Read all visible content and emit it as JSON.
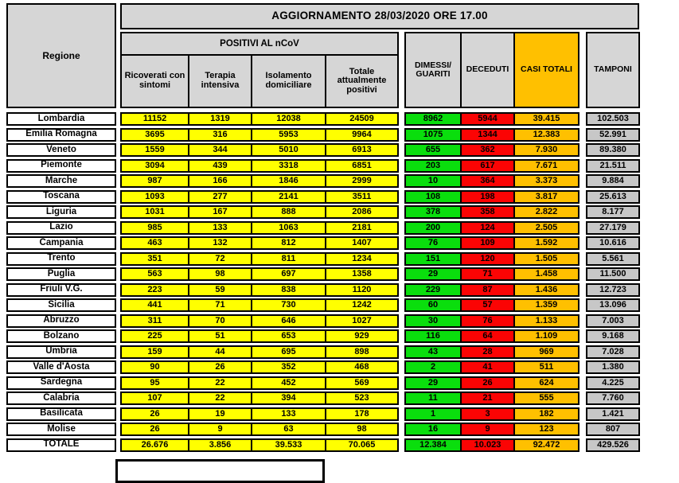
{
  "header": {
    "banner": "AGGIORNAMENTO 28/03/2020 ORE 17.00",
    "regione": "Regione",
    "positivi_group": "POSITIVI AL nCoV",
    "sub": [
      "Ricoverati con sintomi",
      "Terapia intensiva",
      "Isolamento domiciliare",
      "Totale attualmente positivi"
    ],
    "dimessi": "DIMESSI/\nGUARITI",
    "deceduti": "DECEDUTI",
    "casi_totali": "CASI TOTALI",
    "tamponi": "TAMPONI"
  },
  "colors": {
    "yellow": "#FFFF00",
    "green": "#0ADE0D",
    "red": "#FB0404",
    "orange": "#FFC000",
    "header_gray": "#D6D6D6",
    "tamponi_gray": "#C7C7C7",
    "border": "#000000"
  },
  "chart_data": {
    "type": "table",
    "title": "AGGIORNAMENTO 28/03/2020 ORE 17.00",
    "column_group": "POSITIVI AL nCoV",
    "columns": [
      "Regione",
      "Ricoverati con sintomi",
      "Terapia intensiva",
      "Isolamento domiciliare",
      "Totale attualmente positivi",
      "DIMESSI/GUARITI",
      "DECEDUTI",
      "CASI TOTALI",
      "TAMPONI"
    ],
    "rows": [
      [
        "Lombardia",
        "11152",
        "1319",
        "12038",
        "24509",
        "8962",
        "5944",
        "39.415",
        "102.503"
      ],
      [
        "Emilia Romagna",
        "3695",
        "316",
        "5953",
        "9964",
        "1075",
        "1344",
        "12.383",
        "52.991"
      ],
      [
        "Veneto",
        "1559",
        "344",
        "5010",
        "6913",
        "655",
        "362",
        "7.930",
        "89.380"
      ],
      [
        "Piemonte",
        "3094",
        "439",
        "3318",
        "6851",
        "203",
        "617",
        "7.671",
        "21.511"
      ],
      [
        "Marche",
        "987",
        "166",
        "1846",
        "2999",
        "10",
        "364",
        "3.373",
        "9.884"
      ],
      [
        "Toscana",
        "1093",
        "277",
        "2141",
        "3511",
        "108",
        "198",
        "3.817",
        "25.613"
      ],
      [
        "Liguria",
        "1031",
        "167",
        "888",
        "2086",
        "378",
        "358",
        "2.822",
        "8.177"
      ],
      [
        "Lazio",
        "985",
        "133",
        "1063",
        "2181",
        "200",
        "124",
        "2.505",
        "27.179"
      ],
      [
        "Campania",
        "463",
        "132",
        "812",
        "1407",
        "76",
        "109",
        "1.592",
        "10.616"
      ],
      [
        "Trento",
        "351",
        "72",
        "811",
        "1234",
        "151",
        "120",
        "1.505",
        "5.561"
      ],
      [
        "Puglia",
        "563",
        "98",
        "697",
        "1358",
        "29",
        "71",
        "1.458",
        "11.500"
      ],
      [
        "Friuli V.G.",
        "223",
        "59",
        "838",
        "1120",
        "229",
        "87",
        "1.436",
        "12.723"
      ],
      [
        "Sicilia",
        "441",
        "71",
        "730",
        "1242",
        "60",
        "57",
        "1.359",
        "13.096"
      ],
      [
        "Abruzzo",
        "311",
        "70",
        "646",
        "1027",
        "30",
        "76",
        "1.133",
        "7.003"
      ],
      [
        "Bolzano",
        "225",
        "51",
        "653",
        "929",
        "116",
        "64",
        "1.109",
        "9.168"
      ],
      [
        "Umbria",
        "159",
        "44",
        "695",
        "898",
        "43",
        "28",
        "969",
        "7.028"
      ],
      [
        "Valle d'Aosta",
        "90",
        "26",
        "352",
        "468",
        "2",
        "41",
        "511",
        "1.380"
      ],
      [
        "Sardegna",
        "95",
        "22",
        "452",
        "569",
        "29",
        "26",
        "624",
        "4.225"
      ],
      [
        "Calabria",
        "107",
        "22",
        "394",
        "523",
        "11",
        "21",
        "555",
        "7.760"
      ],
      [
        "Basilicata",
        "26",
        "19",
        "133",
        "178",
        "1",
        "3",
        "182",
        "1.421"
      ],
      [
        "Molise",
        "26",
        "9",
        "63",
        "98",
        "16",
        "9",
        "123",
        "807"
      ]
    ],
    "totale": [
      "TOTALE",
      "26.676",
      "3.856",
      "39.533",
      "70.065",
      "12.384",
      "10.023",
      "92.472",
      "429.526"
    ]
  }
}
